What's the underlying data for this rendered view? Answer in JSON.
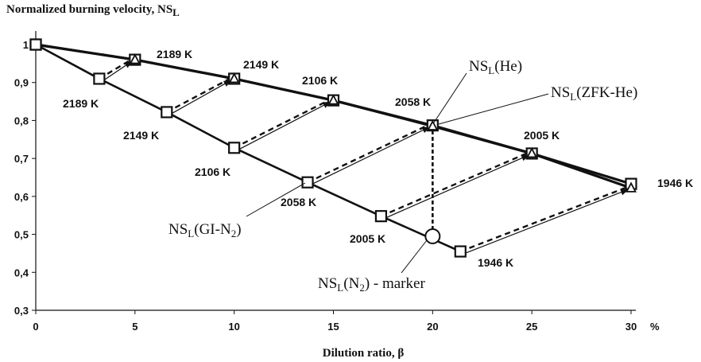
{
  "chart_data": {
    "type": "line",
    "title": "Normalized burning velocity, NS",
    "title_sub": "L",
    "xlabel": "Dilution ratio, β",
    "x_unit": "%",
    "xlim": [
      0,
      30
    ],
    "ylim": [
      0.3,
      1.0
    ],
    "x_ticks": [
      "0",
      "5",
      "10",
      "15",
      "20",
      "25",
      "30"
    ],
    "y_ticks": [
      "0,3",
      "0,4",
      "0,5",
      "0,6",
      "0,7",
      "0,8",
      "0,9",
      "1"
    ],
    "series": [
      {
        "name": "NSL(He)",
        "marker": "triangle",
        "x": [
          0,
          5,
          10,
          15,
          20,
          25,
          30
        ],
        "y": [
          1.0,
          0.96,
          0.91,
          0.853,
          0.785,
          0.713,
          0.622
        ]
      },
      {
        "name": "NSL(ZFK-He)",
        "marker": "square",
        "x": [
          0,
          5,
          10,
          15,
          20,
          25,
          30
        ],
        "y": [
          1.0,
          0.96,
          0.91,
          0.853,
          0.787,
          0.713,
          0.633
        ]
      },
      {
        "name": "NSL(GI-N2)",
        "marker": "square",
        "x": [
          0,
          3.2,
          6.6,
          10,
          13.7,
          17.4,
          21.4
        ],
        "y": [
          1.0,
          0.91,
          0.822,
          0.728,
          0.637,
          0.548,
          0.455
        ]
      }
    ],
    "links": [
      {
        "from": [
          3.2,
          0.91
        ],
        "to": [
          5,
          0.96
        ]
      },
      {
        "from": [
          6.6,
          0.822
        ],
        "to": [
          10,
          0.91
        ]
      },
      {
        "from": [
          10,
          0.728
        ],
        "to": [
          15,
          0.853
        ]
      },
      {
        "from": [
          13.7,
          0.637
        ],
        "to": [
          20,
          0.787
        ]
      },
      {
        "from": [
          17.4,
          0.548
        ],
        "to": [
          25,
          0.713
        ]
      },
      {
        "from": [
          21.4,
          0.455
        ],
        "to": [
          30,
          0.622
        ]
      }
    ],
    "marker_point": {
      "x": 20,
      "y": 0.495
    },
    "vertical_link": {
      "x": 20,
      "y_from": 0.495,
      "y_to": 0.787
    },
    "upper_temp_labels": [
      "2189 K",
      "2149 K",
      "2106 K",
      "2058 K",
      "2005 K",
      "1946 K"
    ],
    "lower_temp_labels": [
      "2189 K",
      "2149 K",
      "2106 K",
      "2058 K",
      "2005 K",
      "1946 K"
    ],
    "annotations": [
      {
        "text": "NS",
        "sub": "L",
        "rest": "(He)"
      },
      {
        "text": "NS",
        "sub": "L",
        "rest": "(ZFK-He)"
      },
      {
        "text": "NS",
        "sub": "L",
        "rest": "(GI-N",
        "sub2": "2",
        "rest2": ")"
      },
      {
        "text": "NS",
        "sub": "L",
        "rest": "(N",
        "sub2": "2",
        "rest2": ") - marker"
      }
    ]
  }
}
